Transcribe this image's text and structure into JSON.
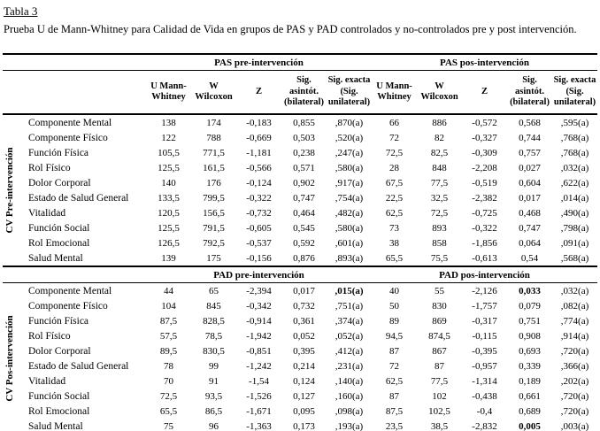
{
  "page": {
    "title": "Tabla 3",
    "caption": "Prueba U de Mann-Whitney para Calidad de Vida en grupos de PAS y PAD controlados y no-controlados pre y post intervención."
  },
  "table": {
    "column_headers": [
      "U Mann-Whitney",
      "W Wilcoxon",
      "Z",
      "Sig. asintót. (bilateral)",
      "Sig. exacta (Sig. unilateral)"
    ],
    "sections": [
      {
        "group_label": "CV Pre-intervención",
        "band_labels": [
          "PAS pre-intervención",
          "PAS pos-intervención"
        ],
        "bold_cells": [],
        "rows": [
          {
            "label": "Componente Mental",
            "cells": [
              "138",
              "174",
              "-0,183",
              "0,855",
              ",870(a)",
              "66",
              "886",
              "-0,572",
              "0,568",
              ",595(a)"
            ]
          },
          {
            "label": "Componente Físico",
            "cells": [
              "122",
              "788",
              "-0,669",
              "0,503",
              ",520(a)",
              "72",
              "82",
              "-0,327",
              "0,744",
              ",768(a)"
            ]
          },
          {
            "label": "Función Física",
            "cells": [
              "105,5",
              "771,5",
              "-1,181",
              "0,238",
              ",247(a)",
              "72,5",
              "82,5",
              "-0,309",
              "0,757",
              ",768(a)"
            ]
          },
          {
            "label": "Rol Físico",
            "cells": [
              "125,5",
              "161,5",
              "-0,566",
              "0,571",
              ",580(a)",
              "28",
              "848",
              "-2,208",
              "0,027",
              ",032(a)"
            ]
          },
          {
            "label": "Dolor Corporal",
            "cells": [
              "140",
              "176",
              "-0,124",
              "0,902",
              ",917(a)",
              "67,5",
              "77,5",
              "-0,519",
              "0,604",
              ",622(a)"
            ]
          },
          {
            "label": "Estado de Salud General",
            "cells": [
              "133,5",
              "799,5",
              "-0,322",
              "0,747",
              ",754(a)",
              "22,5",
              "32,5",
              "-2,382",
              "0,017",
              ",014(a)"
            ]
          },
          {
            "label": "Vitalidad",
            "cells": [
              "120,5",
              "156,5",
              "-0,732",
              "0,464",
              ",482(a)",
              "62,5",
              "72,5",
              "-0,725",
              "0,468",
              ",490(a)"
            ]
          },
          {
            "label": "Función Social",
            "cells": [
              "125,5",
              "791,5",
              "-0,605",
              "0,545",
              ",580(a)",
              "73",
              "893",
              "-0,322",
              "0,747",
              ",798(a)"
            ]
          },
          {
            "label": "Rol Emocional",
            "cells": [
              "126,5",
              "792,5",
              "-0,537",
              "0,592",
              ",601(a)",
              "38",
              "858",
              "-1,856",
              "0,064",
              ",091(a)"
            ]
          },
          {
            "label": "Salud Mental",
            "cells": [
              "139",
              "175",
              "-0,156",
              "0,876",
              ",893(a)",
              "65,5",
              "75,5",
              "-0,613",
              "0,54",
              ",568(a)"
            ]
          }
        ]
      },
      {
        "group_label": "CV Pos-intervención",
        "band_labels": [
          "PAD pre-intervención",
          "PAD pos-intervención"
        ],
        "bold_cells": [
          [
            0,
            4
          ],
          [
            0,
            8
          ],
          [
            9,
            8
          ]
        ],
        "rows": [
          {
            "label": "Componente Mental",
            "cells": [
              "44",
              "65",
              "-2,394",
              "0,017",
              ",015(a)",
              "40",
              "55",
              "-2,126",
              "0,033",
              ",032(a)"
            ]
          },
          {
            "label": "Componente Físico",
            "cells": [
              "104",
              "845",
              "-0,342",
              "0,732",
              ",751(a)",
              "50",
              "830",
              "-1,757",
              "0,079",
              ",082(a)"
            ]
          },
          {
            "label": "Función Física",
            "cells": [
              "87,5",
              "828,5",
              "-0,914",
              "0,361",
              ",374(a)",
              "89",
              "869",
              "-0,317",
              "0,751",
              ",774(a)"
            ]
          },
          {
            "label": "Rol Físico",
            "cells": [
              "57,5",
              "78,5",
              "-1,942",
              "0,052",
              ",052(a)",
              "94,5",
              "874,5",
              "-0,115",
              "0,908",
              ",914(a)"
            ]
          },
          {
            "label": "Dolor Corporal",
            "cells": [
              "89,5",
              "830,5",
              "-0,851",
              "0,395",
              ",412(a)",
              "87",
              "867",
              "-0,395",
              "0,693",
              ",720(a)"
            ]
          },
          {
            "label": "Estado de Salud General",
            "cells": [
              "78",
              "99",
              "-1,242",
              "0,214",
              ",231(a)",
              "72",
              "87",
              "-0,957",
              "0,339",
              ",366(a)"
            ]
          },
          {
            "label": "Vitalidad",
            "cells": [
              "70",
              "91",
              "-1,54",
              "0,124",
              ",140(a)",
              "62,5",
              "77,5",
              "-1,314",
              "0,189",
              ",202(a)"
            ]
          },
          {
            "label": "Función Social",
            "cells": [
              "72,5",
              "93,5",
              "-1,526",
              "0,127",
              ",160(a)",
              "87",
              "102",
              "-0,438",
              "0,661",
              ",720(a)"
            ]
          },
          {
            "label": "Rol Emocional",
            "cells": [
              "65,5",
              "86,5",
              "-1,671",
              "0,095",
              ",098(a)",
              "87,5",
              "102,5",
              "-0,4",
              "0,689",
              ",720(a)"
            ]
          },
          {
            "label": "Salud Mental",
            "cells": [
              "75",
              "96",
              "-1,363",
              "0,173",
              ",193(a)",
              "23,5",
              "38,5",
              "-2,832",
              "0,005",
              ",003(a)"
            ]
          }
        ]
      }
    ]
  }
}
